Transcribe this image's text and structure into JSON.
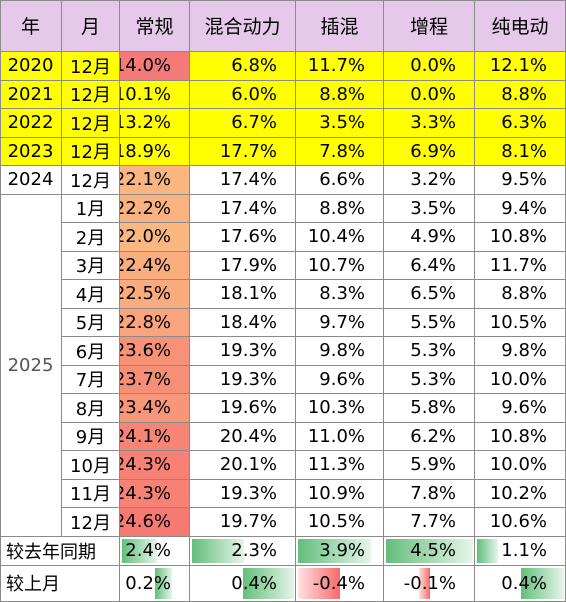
{
  "headers": [
    "年",
    "月",
    "常规",
    "混合动力",
    "插混",
    "增程",
    "纯电动"
  ],
  "colors": {
    "header_bg": "#e6c9ea",
    "highlight_row": "#ffff00",
    "border": "#8a8a8a",
    "bar_green": "#63be7b",
    "bar_red": "#f8696b"
  },
  "rows": [
    {
      "year": "2020",
      "month": "12月",
      "highlight": true,
      "values": [
        "14.0%",
        "6.8%",
        "11.7%",
        "0.0%",
        "12.1%"
      ]
    },
    {
      "year": "2021",
      "month": "12月",
      "highlight": true,
      "values": [
        "10.1%",
        "6.0%",
        "8.8%",
        "0.0%",
        "8.8%"
      ]
    },
    {
      "year": "2022",
      "month": "12月",
      "highlight": true,
      "values": [
        "13.2%",
        "6.7%",
        "3.5%",
        "3.3%",
        "6.3%"
      ]
    },
    {
      "year": "2023",
      "month": "12月",
      "highlight": true,
      "values": [
        "18.9%",
        "17.7%",
        "7.8%",
        "6.9%",
        "8.1%"
      ]
    },
    {
      "year": "2024",
      "month": "12月",
      "highlight": false,
      "values": [
        "22.1%",
        "17.4%",
        "6.6%",
        "3.2%",
        "9.5%"
      ]
    },
    {
      "year": "",
      "month": "1月",
      "highlight": false,
      "values": [
        "22.2%",
        "17.4%",
        "8.8%",
        "3.5%",
        "9.4%"
      ]
    },
    {
      "year": "",
      "month": "2月",
      "highlight": false,
      "values": [
        "22.0%",
        "17.6%",
        "10.4%",
        "4.9%",
        "10.8%"
      ]
    },
    {
      "year": "",
      "month": "3月",
      "highlight": false,
      "values": [
        "22.4%",
        "17.9%",
        "10.7%",
        "6.4%",
        "11.7%"
      ]
    },
    {
      "year": "",
      "month": "4月",
      "highlight": false,
      "values": [
        "22.5%",
        "18.1%",
        "8.3%",
        "6.5%",
        "8.8%"
      ]
    },
    {
      "year": "",
      "month": "5月",
      "highlight": false,
      "values": [
        "22.8%",
        "18.4%",
        "9.7%",
        "5.5%",
        "10.5%"
      ]
    },
    {
      "year": "",
      "month": "6月",
      "highlight": false,
      "values": [
        "23.6%",
        "19.3%",
        "9.8%",
        "5.3%",
        "9.8%"
      ]
    },
    {
      "year": "",
      "month": "7月",
      "highlight": false,
      "values": [
        "23.7%",
        "19.3%",
        "9.6%",
        "5.3%",
        "10.0%"
      ]
    },
    {
      "year": "",
      "month": "8月",
      "highlight": false,
      "values": [
        "23.4%",
        "19.6%",
        "10.3%",
        "5.8%",
        "9.6%"
      ]
    },
    {
      "year": "",
      "month": "9月",
      "highlight": false,
      "values": [
        "24.1%",
        "20.4%",
        "11.0%",
        "6.2%",
        "10.8%"
      ]
    },
    {
      "year": "",
      "month": "10月",
      "highlight": false,
      "values": [
        "24.3%",
        "20.1%",
        "11.3%",
        "5.9%",
        "10.0%"
      ]
    },
    {
      "year": "",
      "month": "11月",
      "highlight": false,
      "values": [
        "24.3%",
        "19.3%",
        "10.9%",
        "7.8%",
        "10.2%"
      ]
    },
    {
      "year": "",
      "month": "12月",
      "highlight": false,
      "values": [
        "24.6%",
        "19.7%",
        "10.5%",
        "7.7%",
        "10.6%"
      ]
    }
  ],
  "year_2025_label": "2025",
  "yoy": {
    "label": "较去年同期",
    "values": [
      "2.4%",
      "2.3%",
      "3.9%",
      "4.5%",
      "1.1%"
    ],
    "numbers": [
      2.4,
      2.3,
      3.9,
      4.5,
      1.1
    ]
  },
  "mom": {
    "label": "较上月",
    "values": [
      "0.2%",
      "0.4%",
      "-0.4%",
      "-0.1%",
      "0.4%"
    ],
    "numbers": [
      0.2,
      0.4,
      -0.4,
      -0.1,
      0.4
    ]
  }
}
